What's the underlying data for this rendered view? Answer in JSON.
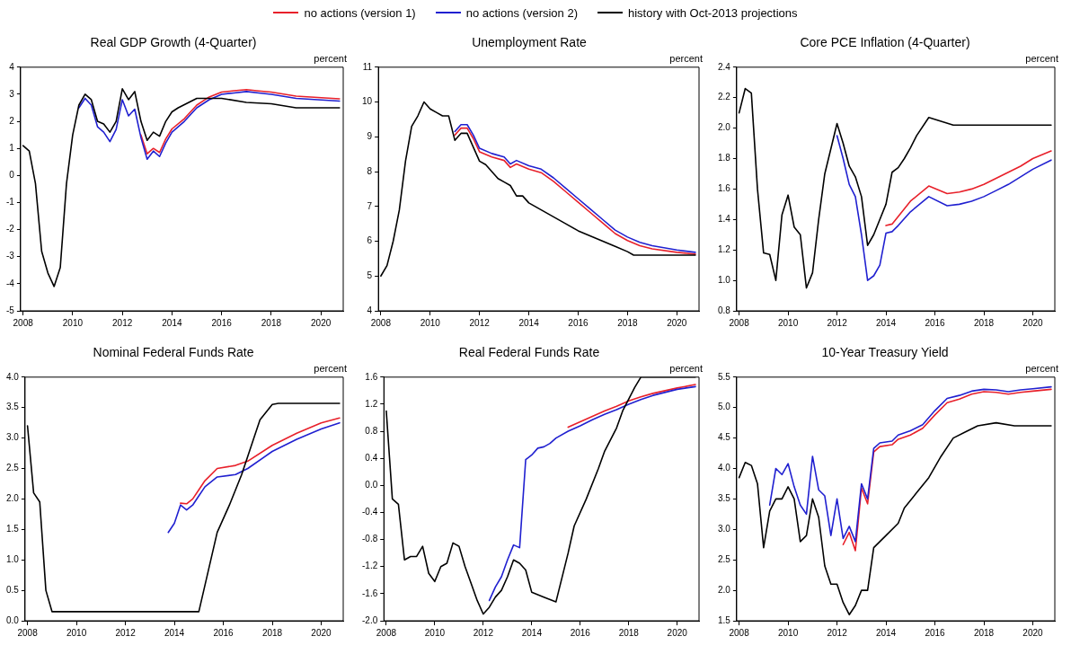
{
  "chart_data": [
    {
      "type": "line",
      "title": "Real GDP Growth (4-Quarter)",
      "ylabel": "percent",
      "legend": "top",
      "grid": false,
      "marker": "none",
      "line_style": "solid",
      "xlim": [
        2007.9,
        2020.9
      ],
      "xticks": [
        2008,
        2010,
        2012,
        2014,
        2016,
        2018,
        2020
      ],
      "ylim": [
        -5,
        4
      ],
      "yticks": [
        -5,
        -4,
        -3,
        -2,
        -1,
        0,
        1,
        2,
        3,
        4
      ],
      "series": [
        {
          "name": "no actions (version 1)",
          "color": "#e8202a",
          "x": [
            2012.75,
            2013.0,
            2013.25,
            2013.5,
            2013.75,
            2014.0,
            2014.5,
            2015.0,
            2015.5,
            2016.0,
            2016.5,
            2017.0,
            2017.5,
            2018.0,
            2019.0,
            2020.75
          ],
          "values": [
            1.5,
            0.8,
            1.0,
            0.85,
            1.35,
            1.72,
            2.1,
            2.6,
            2.9,
            3.08,
            3.13,
            3.17,
            3.12,
            3.08,
            2.93,
            2.83
          ]
        },
        {
          "name": "no actions (version 2)",
          "color": "#2020d0",
          "x": [
            2010.25,
            2010.5,
            2010.75,
            2011.0,
            2011.25,
            2011.5,
            2011.75,
            2012.0,
            2012.25,
            2012.5,
            2012.75,
            2013.0,
            2013.25,
            2013.5,
            2013.75,
            2014.0,
            2014.5,
            2015.0,
            2015.5,
            2016.0,
            2016.5,
            2017.0,
            2017.5,
            2018.0,
            2019.0,
            2020.75
          ],
          "values": [
            2.5,
            2.85,
            2.6,
            1.8,
            1.6,
            1.25,
            1.7,
            2.8,
            2.2,
            2.45,
            1.4,
            0.6,
            0.9,
            0.7,
            1.2,
            1.6,
            2.0,
            2.5,
            2.8,
            3.0,
            3.05,
            3.1,
            3.05,
            3.0,
            2.85,
            2.75
          ]
        },
        {
          "name": "history with Oct-2013 projections",
          "color": "#000000",
          "x": [
            2008.0,
            2008.25,
            2008.5,
            2008.75,
            2009.0,
            2009.25,
            2009.5,
            2009.75,
            2010.0,
            2010.25,
            2010.5,
            2010.75,
            2011.0,
            2011.25,
            2011.5,
            2011.75,
            2012.0,
            2012.25,
            2012.5,
            2012.75,
            2013.0,
            2013.25,
            2013.5,
            2013.75,
            2014.0,
            2014.25,
            2015.0,
            2016.0,
            2017.0,
            2018.0,
            2019.0,
            2020.75
          ],
          "values": [
            1.1,
            0.9,
            -0.3,
            -2.8,
            -3.6,
            -4.1,
            -3.4,
            -0.3,
            1.5,
            2.6,
            3.0,
            2.8,
            2.0,
            1.9,
            1.6,
            2.0,
            3.2,
            2.8,
            3.1,
            2.0,
            1.3,
            1.6,
            1.45,
            2.0,
            2.35,
            2.5,
            2.85,
            2.85,
            2.7,
            2.65,
            2.5,
            2.5
          ]
        }
      ]
    },
    {
      "type": "line",
      "title": "Unemployment Rate",
      "ylabel": "percent",
      "legend": false,
      "grid": false,
      "marker": "none",
      "line_style": "solid",
      "xlim": [
        2007.9,
        2020.9
      ],
      "xticks": [
        2008,
        2010,
        2012,
        2014,
        2016,
        2018,
        2020
      ],
      "ylim": [
        4,
        11
      ],
      "yticks": [
        4,
        5,
        6,
        7,
        8,
        9,
        10,
        11
      ],
      "series": [
        {
          "color": "#e8202a",
          "x": [
            2011.0,
            2011.25,
            2011.5,
            2011.75,
            2012.0,
            2012.5,
            2013.0,
            2013.25,
            2013.5,
            2014.0,
            2014.5,
            2015.0,
            2015.5,
            2016.0,
            2016.5,
            2017.0,
            2017.5,
            2018.0,
            2018.5,
            2019.0,
            2020.0,
            2020.75
          ],
          "values": [
            9.05,
            9.25,
            9.25,
            8.95,
            8.57,
            8.42,
            8.32,
            8.12,
            8.22,
            8.07,
            7.97,
            7.72,
            7.42,
            7.12,
            6.82,
            6.52,
            6.22,
            6.02,
            5.87,
            5.78,
            5.68,
            5.63
          ]
        },
        {
          "color": "#2020d0",
          "x": [
            2011.0,
            2011.25,
            2011.5,
            2011.75,
            2012.0,
            2012.5,
            2013.0,
            2013.25,
            2013.5,
            2014.0,
            2014.5,
            2015.0,
            2015.5,
            2016.0,
            2016.5,
            2017.0,
            2017.5,
            2018.0,
            2018.5,
            2019.0,
            2020.0,
            2020.75
          ],
          "values": [
            9.15,
            9.35,
            9.35,
            9.05,
            8.67,
            8.52,
            8.42,
            8.22,
            8.32,
            8.17,
            8.07,
            7.82,
            7.52,
            7.22,
            6.92,
            6.62,
            6.32,
            6.12,
            5.97,
            5.87,
            5.75,
            5.68
          ]
        },
        {
          "color": "#000000",
          "x": [
            2008.0,
            2008.25,
            2008.5,
            2008.75,
            2009.0,
            2009.25,
            2009.5,
            2009.75,
            2010.0,
            2010.25,
            2010.5,
            2010.75,
            2011.0,
            2011.25,
            2011.5,
            2011.75,
            2012.0,
            2012.25,
            2012.5,
            2012.75,
            2013.0,
            2013.25,
            2013.5,
            2013.75,
            2014.0,
            2014.5,
            2015.0,
            2015.5,
            2016.0,
            2016.5,
            2017.0,
            2017.5,
            2018.0,
            2018.25,
            2020.75
          ],
          "values": [
            5.0,
            5.3,
            6.0,
            6.9,
            8.3,
            9.3,
            9.6,
            10.0,
            9.8,
            9.7,
            9.6,
            9.6,
            8.9,
            9.1,
            9.1,
            8.7,
            8.3,
            8.2,
            8.0,
            7.8,
            7.7,
            7.6,
            7.3,
            7.3,
            7.1,
            6.9,
            6.7,
            6.5,
            6.3,
            6.15,
            6.0,
            5.85,
            5.7,
            5.6,
            5.6
          ]
        }
      ]
    },
    {
      "type": "line",
      "title": "Core PCE Inflation (4-Quarter)",
      "ylabel": "percent",
      "legend": false,
      "grid": false,
      "marker": "none",
      "line_style": "solid",
      "xlim": [
        2007.9,
        2020.9
      ],
      "xticks": [
        2008,
        2010,
        2012,
        2014,
        2016,
        2018,
        2020
      ],
      "ylim": [
        0.8,
        2.4
      ],
      "yticks": [
        0.8,
        {
          "value": 1,
          "label": "1.0"
        },
        1.2,
        1.4,
        1.6,
        1.8,
        {
          "value": 2,
          "label": "2.0"
        },
        2.2,
        2.4
      ],
      "series": [
        {
          "color": "#e8202a",
          "x": [
            2014.0,
            2014.25,
            2014.5,
            2015.0,
            2015.75,
            2016.5,
            2017.0,
            2017.5,
            2018.0,
            2018.5,
            2019.0,
            2019.5,
            2020.0,
            2020.75
          ],
          "values": [
            1.36,
            1.37,
            1.42,
            1.52,
            1.62,
            1.57,
            1.58,
            1.6,
            1.63,
            1.67,
            1.71,
            1.75,
            1.8,
            1.85
          ]
        },
        {
          "color": "#2020d0",
          "x": [
            2012.0,
            2012.25,
            2012.5,
            2012.75,
            2013.0,
            2013.25,
            2013.5,
            2013.75,
            2014.0,
            2014.25,
            2014.5,
            2015.0,
            2015.75,
            2016.5,
            2017.0,
            2017.5,
            2018.0,
            2018.5,
            2019.0,
            2019.5,
            2020.0,
            2020.75
          ],
          "values": [
            1.95,
            1.8,
            1.63,
            1.55,
            1.3,
            1.0,
            1.03,
            1.1,
            1.31,
            1.32,
            1.36,
            1.45,
            1.55,
            1.49,
            1.5,
            1.52,
            1.55,
            1.59,
            1.63,
            1.68,
            1.73,
            1.79
          ]
        },
        {
          "color": "#000000",
          "x": [
            2008.0,
            2008.25,
            2008.5,
            2008.75,
            2009.0,
            2009.25,
            2009.5,
            2009.75,
            2010.0,
            2010.25,
            2010.5,
            2010.75,
            2011.0,
            2011.25,
            2011.5,
            2012.0,
            2012.25,
            2012.5,
            2012.75,
            2013.0,
            2013.25,
            2013.5,
            2013.75,
            2014.0,
            2014.25,
            2014.5,
            2014.75,
            2015.0,
            2015.25,
            2015.75,
            2016.75,
            2020.75
          ],
          "values": [
            2.1,
            2.26,
            2.23,
            1.6,
            1.18,
            1.17,
            1.0,
            1.43,
            1.56,
            1.35,
            1.3,
            0.95,
            1.05,
            1.4,
            1.7,
            2.03,
            1.9,
            1.75,
            1.68,
            1.55,
            1.23,
            1.3,
            1.4,
            1.5,
            1.71,
            1.74,
            1.8,
            1.87,
            1.95,
            2.07,
            2.02,
            2.02
          ]
        }
      ]
    },
    {
      "type": "line",
      "title": "Nominal Federal Funds Rate",
      "ylabel": "percent",
      "legend": false,
      "grid": false,
      "marker": "none",
      "line_style": "solid",
      "xlim": [
        2007.9,
        2020.9
      ],
      "xticks": [
        2008,
        2010,
        2012,
        2014,
        2016,
        2018,
        2020
      ],
      "ylim": [
        0,
        4
      ],
      "yticks": [
        {
          "value": 0,
          "label": "0.0"
        },
        0.5,
        {
          "value": 1,
          "label": "1.0"
        },
        1.5,
        {
          "value": 2,
          "label": "2.0"
        },
        2.5,
        {
          "value": 3,
          "label": "3.0"
        },
        3.5,
        {
          "value": 4,
          "label": "4.0"
        }
      ],
      "series": [
        {
          "color": "#e8202a",
          "x": [
            2014.25,
            2014.5,
            2014.75,
            2015.0,
            2015.25,
            2015.75,
            2016.5,
            2017.0,
            2018.0,
            2019.0,
            2020.0,
            2020.75
          ],
          "values": [
            1.93,
            1.92,
            2.0,
            2.15,
            2.3,
            2.5,
            2.55,
            2.62,
            2.88,
            3.08,
            3.25,
            3.33
          ]
        },
        {
          "color": "#2020d0",
          "x": [
            2013.75,
            2014.0,
            2014.25,
            2014.5,
            2014.75,
            2015.0,
            2015.25,
            2015.75,
            2016.5,
            2017.0,
            2018.0,
            2019.0,
            2020.0,
            2020.75
          ],
          "values": [
            1.45,
            1.6,
            1.9,
            1.82,
            1.9,
            2.05,
            2.2,
            2.36,
            2.4,
            2.5,
            2.78,
            2.98,
            3.15,
            3.25
          ]
        },
        {
          "color": "#000000",
          "x": [
            2008.0,
            2008.25,
            2008.5,
            2008.75,
            2009.0,
            2015.0,
            2015.75,
            2016.25,
            2016.75,
            2017.25,
            2017.5,
            2018.0,
            2018.25,
            2020.75
          ],
          "values": [
            3.2,
            2.1,
            1.95,
            0.5,
            0.15,
            0.15,
            1.45,
            1.9,
            2.4,
            3.0,
            3.3,
            3.55,
            3.57,
            3.57
          ]
        }
      ]
    },
    {
      "type": "line",
      "title": "Real Federal Funds Rate",
      "ylabel": "percent",
      "legend": false,
      "grid": false,
      "marker": "none",
      "line_style": "solid",
      "xlim": [
        2007.9,
        2020.9
      ],
      "xticks": [
        2008,
        2010,
        2012,
        2014,
        2016,
        2018,
        2020
      ],
      "ylim": [
        -2,
        1.6
      ],
      "yticks": [
        {
          "value": -2,
          "label": "-2.0"
        },
        -1.6,
        -1.2,
        -0.8,
        -0.4,
        {
          "value": 0,
          "label": "0.0"
        },
        0.4,
        0.8,
        1.2,
        1.6
      ],
      "series": [
        {
          "color": "#e8202a",
          "x": [
            2015.5,
            2016.0,
            2016.5,
            2017.0,
            2017.5,
            2018.0,
            2018.5,
            2019.0,
            2020.0,
            2020.75
          ],
          "values": [
            0.86,
            0.94,
            1.02,
            1.1,
            1.17,
            1.25,
            1.31,
            1.36,
            1.44,
            1.49
          ]
        },
        {
          "color": "#2020d0",
          "x": [
            2012.25,
            2012.5,
            2012.75,
            2013.0,
            2013.25,
            2013.5,
            2013.75,
            2014.0,
            2014.25,
            2014.5,
            2014.75,
            2015.0,
            2015.5,
            2016.0,
            2016.5,
            2017.0,
            2017.5,
            2018.0,
            2018.5,
            2019.0,
            2020.0,
            2020.75
          ],
          "values": [
            -1.7,
            -1.5,
            -1.35,
            -1.1,
            -0.88,
            -0.92,
            0.38,
            0.45,
            0.55,
            0.57,
            0.62,
            0.7,
            0.8,
            0.88,
            0.97,
            1.05,
            1.12,
            1.2,
            1.27,
            1.33,
            1.42,
            1.46
          ]
        },
        {
          "color": "#000000",
          "x": [
            2008.0,
            2008.25,
            2008.5,
            2008.75,
            2009.0,
            2009.25,
            2009.5,
            2009.75,
            2010.0,
            2010.25,
            2010.5,
            2010.75,
            2011.0,
            2011.25,
            2011.5,
            2011.75,
            2012.0,
            2012.25,
            2012.5,
            2012.75,
            2013.0,
            2013.25,
            2013.5,
            2013.75,
            2014.0,
            2014.5,
            2015.0,
            2015.5,
            2015.75,
            2016.25,
            2016.75,
            2017.0,
            2017.5,
            2017.75,
            2018.25,
            2018.5,
            2020.75
          ],
          "values": [
            1.1,
            -0.2,
            -0.28,
            -1.1,
            -1.05,
            -1.05,
            -0.9,
            -1.3,
            -1.42,
            -1.2,
            -1.15,
            -0.85,
            -0.9,
            -1.2,
            -1.45,
            -1.7,
            -1.9,
            -1.8,
            -1.65,
            -1.55,
            -1.35,
            -1.1,
            -1.15,
            -1.25,
            -1.58,
            -1.65,
            -1.72,
            -1.0,
            -0.6,
            -0.2,
            0.25,
            0.5,
            0.85,
            1.1,
            1.45,
            1.6,
            1.6
          ]
        }
      ]
    },
    {
      "type": "line",
      "title": "10-Year Treasury Yield",
      "ylabel": "percent",
      "legend": false,
      "grid": false,
      "marker": "none",
      "line_style": "solid",
      "xlim": [
        2007.9,
        2020.9
      ],
      "xticks": [
        2008,
        2010,
        2012,
        2014,
        2016,
        2018,
        2020
      ],
      "ylim": [
        1.5,
        5.5
      ],
      "yticks": [
        1.5,
        {
          "value": 2,
          "label": "2.0"
        },
        2.5,
        {
          "value": 3,
          "label": "3.0"
        },
        3.5,
        {
          "value": 4,
          "label": "4.0"
        },
        4.5,
        {
          "value": 5,
          "label": "5.0"
        },
        5.5
      ],
      "series": [
        {
          "color": "#e8202a",
          "x": [
            2012.25,
            2012.5,
            2012.75,
            2013.0,
            2013.25,
            2013.5,
            2013.75,
            2014.25,
            2014.5,
            2015.0,
            2015.5,
            2016.0,
            2016.5,
            2017.0,
            2017.5,
            2018.0,
            2018.5,
            2019.0,
            2019.5,
            2020.0,
            2020.75
          ],
          "values": [
            2.75,
            2.95,
            2.65,
            3.68,
            3.42,
            4.27,
            4.36,
            4.39,
            4.48,
            4.55,
            4.66,
            4.88,
            5.08,
            5.14,
            5.22,
            5.26,
            5.25,
            5.22,
            5.25,
            5.27,
            5.3
          ]
        },
        {
          "color": "#2020d0",
          "x": [
            2009.25,
            2009.5,
            2009.75,
            2010.0,
            2010.25,
            2010.5,
            2010.75,
            2011.0,
            2011.25,
            2011.5,
            2011.75,
            2012.0,
            2012.25,
            2012.5,
            2012.75,
            2013.0,
            2013.25,
            2013.5,
            2013.75,
            2014.25,
            2014.5,
            2015.0,
            2015.5,
            2016.0,
            2016.5,
            2017.0,
            2017.5,
            2018.0,
            2018.5,
            2019.0,
            2019.5,
            2020.0,
            2020.75
          ],
          "values": [
            3.4,
            4.0,
            3.9,
            4.08,
            3.7,
            3.4,
            3.25,
            4.2,
            3.65,
            3.55,
            2.9,
            3.5,
            2.85,
            3.05,
            2.8,
            3.75,
            3.5,
            4.33,
            4.42,
            4.45,
            4.55,
            4.62,
            4.72,
            4.95,
            5.15,
            5.2,
            5.27,
            5.3,
            5.29,
            5.26,
            5.29,
            5.31,
            5.34
          ]
        },
        {
          "color": "#000000",
          "x": [
            2008.0,
            2008.25,
            2008.5,
            2008.75,
            2009.0,
            2009.25,
            2009.5,
            2009.75,
            2010.0,
            2010.25,
            2010.5,
            2010.75,
            2011.0,
            2011.25,
            2011.5,
            2011.75,
            2012.0,
            2012.25,
            2012.5,
            2012.75,
            2013.0,
            2013.25,
            2013.5,
            2014.0,
            2014.5,
            2014.75,
            2015.25,
            2015.75,
            2016.25,
            2016.75,
            2017.25,
            2017.75,
            2018.5,
            2019.25,
            2020.75
          ],
          "values": [
            3.85,
            4.1,
            4.05,
            3.75,
            2.7,
            3.3,
            3.5,
            3.5,
            3.7,
            3.5,
            2.8,
            2.9,
            3.5,
            3.2,
            2.4,
            2.1,
            2.1,
            1.8,
            1.6,
            1.75,
            2.0,
            2.0,
            2.7,
            2.9,
            3.1,
            3.35,
            3.6,
            3.85,
            4.2,
            4.5,
            4.6,
            4.7,
            4.75,
            4.7,
            4.7
          ]
        }
      ]
    }
  ]
}
